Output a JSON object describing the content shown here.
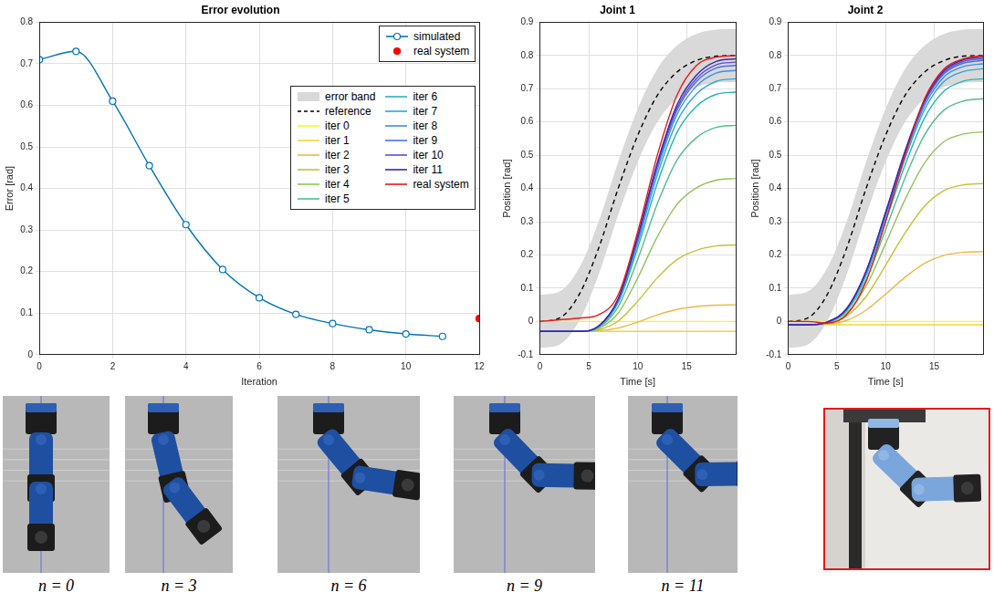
{
  "chart_data": [
    {
      "type": "line",
      "title": "Error evolution",
      "x_label": "Iteration",
      "y_label": "Error [rad]",
      "xlim": [
        0,
        12
      ],
      "xticks": [
        0,
        2,
        4,
        6,
        8,
        10,
        12
      ],
      "ylim": [
        0,
        0.8
      ],
      "yticks": [
        0,
        0.1,
        0.2,
        0.3,
        0.4,
        0.5,
        0.6,
        0.7,
        0.8
      ],
      "grid": true,
      "legend": "upper right",
      "series": [
        {
          "name": "simulated",
          "color": "#0072bd",
          "marker": "circle",
          "line_style": "solid",
          "x": [
            0,
            1,
            2,
            3,
            4,
            5,
            6,
            7,
            8,
            9,
            10,
            11
          ],
          "values": [
            0.71,
            0.73,
            0.61,
            0.455,
            0.313,
            0.205,
            0.137,
            0.097,
            0.075,
            0.06,
            0.05,
            0.044
          ]
        },
        {
          "name": "real system",
          "color": "#ff0000",
          "marker": "circle",
          "line_style": "none",
          "x": [
            12
          ],
          "values": [
            0.087
          ]
        }
      ]
    },
    {
      "type": "line",
      "title": "Joint 1",
      "x_label": "Time [s]",
      "y_label": "Position [rad]",
      "x": [
        0,
        2,
        4,
        6,
        8,
        10,
        12,
        14,
        16,
        18,
        20
      ],
      "xlim": [
        0,
        20
      ],
      "xticks": [
        0,
        5,
        10,
        15
      ],
      "ylim": [
        -0.1,
        0.9
      ],
      "yticks": [
        -0.1,
        0,
        0.1,
        0.2,
        0.3,
        0.4,
        0.5,
        0.6,
        0.7,
        0.8,
        0.9
      ],
      "grid": true,
      "series": [
        {
          "name": "error band",
          "type": "area",
          "color": "#d9d9d9",
          "lower": [
            -0.08,
            -0.07,
            0.0,
            0.14,
            0.32,
            0.48,
            0.6,
            0.67,
            0.705,
            0.718,
            0.72
          ],
          "upper": [
            0.08,
            0.09,
            0.16,
            0.3,
            0.48,
            0.64,
            0.76,
            0.83,
            0.865,
            0.878,
            0.88
          ]
        },
        {
          "name": "reference",
          "color": "#000000",
          "line_style": "dashed",
          "values": [
            0,
            0.01,
            0.08,
            0.22,
            0.4,
            0.56,
            0.68,
            0.75,
            0.785,
            0.798,
            0.8
          ]
        },
        {
          "name": "iter 0",
          "color": "#f9fb0e",
          "values": [
            0,
            0,
            0,
            0,
            0,
            0,
            0,
            0,
            0,
            0,
            0
          ]
        },
        {
          "name": "iter 1",
          "color": "#f5d43a",
          "values": [
            -0.03,
            -0.03,
            -0.03,
            -0.03,
            -0.03,
            -0.03,
            -0.03,
            -0.03,
            -0.03,
            -0.03,
            -0.03
          ]
        },
        {
          "name": "iter 2",
          "color": "#edb846",
          "values": [
            -0.03,
            -0.03,
            -0.03,
            -0.028,
            -0.02,
            -0.002,
            0.02,
            0.036,
            0.045,
            0.049,
            0.05
          ]
        },
        {
          "name": "iter 3",
          "color": "#c6c036",
          "values": [
            -0.03,
            -0.03,
            -0.03,
            -0.025,
            0.001,
            0.061,
            0.131,
            0.186,
            0.214,
            0.227,
            0.23
          ]
        },
        {
          "name": "iter 4",
          "color": "#8fc45a",
          "values": [
            -0.03,
            -0.03,
            -0.03,
            -0.021,
            0.025,
            0.131,
            0.255,
            0.352,
            0.402,
            0.425,
            0.43
          ]
        },
        {
          "name": "iter 5",
          "color": "#52bd8c",
          "values": [
            -0.03,
            -0.03,
            -0.03,
            -0.018,
            0.044,
            0.187,
            0.354,
            0.485,
            0.553,
            0.584,
            0.59
          ]
        },
        {
          "name": "iter 6",
          "color": "#26b5b3",
          "values": [
            -0.03,
            -0.03,
            -0.03,
            -0.016,
            0.056,
            0.222,
            0.416,
            0.568,
            0.647,
            0.683,
            0.69
          ]
        },
        {
          "name": "iter 7",
          "color": "#2fa6dc",
          "values": [
            -0.03,
            -0.03,
            -0.03,
            -0.015,
            0.061,
            0.236,
            0.441,
            0.601,
            0.684,
            0.722,
            0.73
          ]
        },
        {
          "name": "iter 8",
          "color": "#3c8ee8",
          "values": [
            -0.03,
            -0.03,
            -0.03,
            -0.014,
            0.064,
            0.245,
            0.457,
            0.622,
            0.708,
            0.747,
            0.755
          ]
        },
        {
          "name": "iter 9",
          "color": "#4a70e2",
          "values": [
            -0.03,
            -0.03,
            -0.03,
            -0.014,
            0.066,
            0.25,
            0.466,
            0.634,
            0.722,
            0.762,
            0.77
          ]
        },
        {
          "name": "iter 10",
          "color": "#5650d6",
          "values": [
            -0.03,
            -0.03,
            -0.03,
            -0.014,
            0.067,
            0.254,
            0.472,
            0.642,
            0.731,
            0.772,
            0.78
          ]
        },
        {
          "name": "iter 11",
          "color": "#3e26a8",
          "values": [
            -0.03,
            -0.03,
            -0.03,
            -0.014,
            0.068,
            0.257,
            0.478,
            0.651,
            0.741,
            0.782,
            0.79
          ]
        },
        {
          "name": "real system",
          "color": "#e41a1c",
          "values": [
            0,
            0.005,
            0.01,
            0.02,
            0.08,
            0.27,
            0.5,
            0.68,
            0.77,
            0.795,
            0.8
          ]
        }
      ]
    },
    {
      "type": "line",
      "title": "Joint 2",
      "x_label": "Time [s]",
      "y_label": "Position [rad]",
      "x": [
        0,
        2,
        4,
        6,
        8,
        10,
        12,
        14,
        16,
        18,
        20
      ],
      "xlim": [
        0,
        20
      ],
      "xticks": [
        0,
        5,
        10,
        15
      ],
      "ylim": [
        -0.1,
        0.9
      ],
      "yticks": [
        -0.1,
        0,
        0.1,
        0.2,
        0.3,
        0.4,
        0.5,
        0.6,
        0.7,
        0.8,
        0.9
      ],
      "grid": true,
      "series": [
        {
          "name": "error band",
          "type": "area",
          "color": "#d9d9d9",
          "lower": [
            -0.08,
            -0.07,
            0.0,
            0.14,
            0.32,
            0.48,
            0.6,
            0.67,
            0.705,
            0.718,
            0.72
          ],
          "upper": [
            0.08,
            0.09,
            0.16,
            0.3,
            0.48,
            0.64,
            0.76,
            0.83,
            0.865,
            0.878,
            0.88
          ]
        },
        {
          "name": "reference",
          "color": "#000000",
          "line_style": "dashed",
          "values": [
            0,
            0.01,
            0.08,
            0.22,
            0.4,
            0.56,
            0.68,
            0.75,
            0.785,
            0.798,
            0.8
          ]
        },
        {
          "name": "iter 0",
          "color": "#f9fb0e",
          "values": [
            0,
            0,
            0,
            0,
            0,
            0,
            0,
            0,
            0,
            0,
            0
          ]
        },
        {
          "name": "iter 1",
          "color": "#f5d43a",
          "values": [
            -0.01,
            -0.01,
            -0.01,
            -0.01,
            -0.01,
            -0.01,
            -0.01,
            -0.01,
            -0.01,
            -0.01,
            -0.01
          ]
        },
        {
          "name": "iter 2",
          "color": "#edb846",
          "values": [
            -0.01,
            -0.01,
            -0.008,
            0.003,
            0.034,
            0.082,
            0.133,
            0.175,
            0.199,
            0.208,
            0.21
          ]
        },
        {
          "name": "iter 3",
          "color": "#c6c036",
          "values": [
            -0.01,
            -0.01,
            -0.006,
            0.016,
            0.075,
            0.169,
            0.266,
            0.347,
            0.394,
            0.411,
            0.415
          ]
        },
        {
          "name": "iter 4",
          "color": "#8fc45a",
          "values": [
            -0.01,
            -0.01,
            -0.004,
            0.025,
            0.106,
            0.234,
            0.367,
            0.477,
            0.541,
            0.564,
            0.57
          ]
        },
        {
          "name": "iter 5",
          "color": "#52bd8c",
          "values": [
            -0.01,
            -0.01,
            -0.003,
            0.031,
            0.126,
            0.276,
            0.432,
            0.561,
            0.636,
            0.663,
            0.67
          ]
        },
        {
          "name": "iter 6",
          "color": "#26b5b3",
          "values": [
            -0.01,
            -0.01,
            -0.003,
            0.034,
            0.138,
            0.301,
            0.471,
            0.612,
            0.693,
            0.723,
            0.73
          ]
        },
        {
          "name": "iter 7",
          "color": "#2fa6dc",
          "values": [
            -0.01,
            -0.01,
            -0.002,
            0.036,
            0.144,
            0.313,
            0.49,
            0.637,
            0.722,
            0.752,
            0.76
          ]
        },
        {
          "name": "iter 8",
          "color": "#3c8ee8",
          "values": [
            -0.01,
            -0.01,
            -0.002,
            0.037,
            0.147,
            0.32,
            0.5,
            0.649,
            0.736,
            0.767,
            0.775
          ]
        },
        {
          "name": "iter 9",
          "color": "#4a70e2",
          "values": [
            -0.01,
            -0.01,
            -0.002,
            0.038,
            0.149,
            0.324,
            0.507,
            0.658,
            0.745,
            0.777,
            0.785
          ]
        },
        {
          "name": "iter 10",
          "color": "#5650d6",
          "values": [
            -0.01,
            -0.01,
            -0.002,
            0.038,
            0.15,
            0.326,
            0.51,
            0.662,
            0.75,
            0.782,
            0.79
          ]
        },
        {
          "name": "iter 11",
          "color": "#3e26a8",
          "values": [
            -0.01,
            -0.01,
            -0.002,
            0.038,
            0.151,
            0.328,
            0.513,
            0.666,
            0.755,
            0.787,
            0.795
          ]
        },
        {
          "name": "real system",
          "color": "#e41a1c",
          "values": [
            0,
            0,
            -0.005,
            0.02,
            0.12,
            0.3,
            0.5,
            0.67,
            0.76,
            0.79,
            0.8
          ]
        }
      ]
    }
  ],
  "snapshots": [
    {
      "label": "n = 0",
      "series": "iter 0"
    },
    {
      "label": "n = 3",
      "series": "iter 3"
    },
    {
      "label": "n = 6",
      "series": "iter 6"
    },
    {
      "label": "n = 9",
      "series": "iter 9"
    },
    {
      "label": "n = 11",
      "series": "iter 11"
    }
  ],
  "photo": {
    "series": "real system"
  }
}
